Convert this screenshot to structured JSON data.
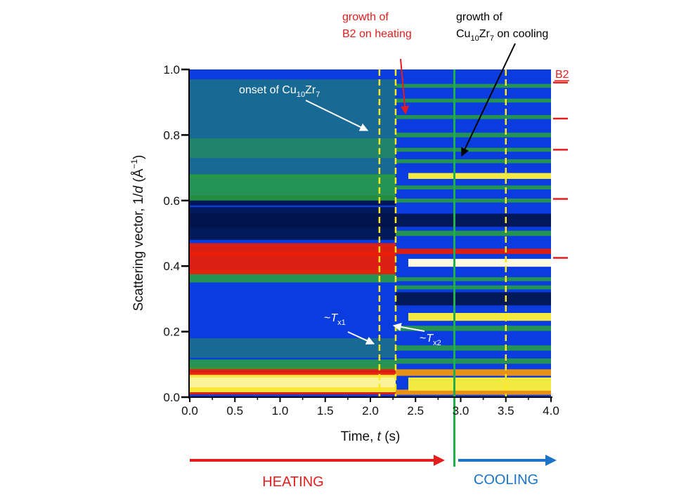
{
  "chart_data": {
    "type": "heatmap",
    "xlabel": {
      "main": "Time, ",
      "var": "t",
      "unit": " (s)"
    },
    "ylabel": {
      "main": "Scattering vector, 1/",
      "var": "d",
      "unit_open": " (Å",
      "exp": "−1",
      "unit_close": ")"
    },
    "xlim": [
      0.0,
      4.0
    ],
    "ylim": [
      0.0,
      1.0
    ],
    "xticks": [
      "0.0",
      "0.5",
      "1.0",
      "1.5",
      "2.0",
      "2.5",
      "3.0",
      "3.5",
      "4.0"
    ],
    "xtick_values": [
      0.0,
      0.5,
      1.0,
      1.5,
      2.0,
      2.5,
      3.0,
      3.5,
      4.0
    ],
    "yticks": [
      "0.0",
      "0.2",
      "0.4",
      "0.6",
      "0.8",
      "1.0"
    ],
    "ytick_values": [
      0.0,
      0.2,
      0.4,
      0.6,
      0.8,
      1.0
    ],
    "colors": {
      "background": "#0a3ce0",
      "dark": "#00144a",
      "green": "#2aa23a",
      "red": "#e81e0a",
      "orange": "#ff9a00",
      "yellow": "#fff23a",
      "white": "#fffbe0",
      "dashed_line": "#ffe81a",
      "cooling_line": "#1fb04a",
      "annotation_red": "#e41e1e",
      "cooling_blue": "#1a74c8"
    },
    "amorphous_bands": [
      {
        "y": 0.02,
        "w": 0.012,
        "kind": "red"
      },
      {
        "y": 0.045,
        "w": 0.03,
        "kind": "yellow"
      },
      {
        "y": 0.08,
        "w": 0.012,
        "kind": "red"
      },
      {
        "y": 0.1,
        "w": 0.015,
        "kind": "green"
      },
      {
        "y": 0.15,
        "w": 0.03,
        "kind": "greenfaint"
      },
      {
        "y": 0.37,
        "w": 0.02,
        "kind": "green"
      },
      {
        "y": 0.41,
        "w": 0.035,
        "kind": "red"
      },
      {
        "y": 0.45,
        "w": 0.02,
        "kind": "red"
      },
      {
        "y": 0.52,
        "w": 0.04,
        "kind": "dark"
      },
      {
        "y": 0.55,
        "w": 0.03,
        "kind": "dark"
      },
      {
        "y": 0.6,
        "w": 0.015,
        "kind": "dark"
      },
      {
        "y": 0.64,
        "w": 0.04,
        "kind": "green"
      },
      {
        "y": 0.73,
        "w": 0.06,
        "kind": "greenfaint"
      },
      {
        "y": 0.85,
        "w": 0.12,
        "kind": "greenfaint"
      }
    ],
    "crystal_bands": [
      {
        "y": 0.015,
        "w": 0.008,
        "kind": "orange"
      },
      {
        "y": 0.04,
        "w": 0.02,
        "kind": "yellow"
      },
      {
        "y": 0.075,
        "w": 0.01,
        "kind": "orange"
      },
      {
        "y": 0.11,
        "w": 0.008,
        "kind": "green"
      },
      {
        "y": 0.15,
        "w": 0.008,
        "kind": "green"
      },
      {
        "y": 0.21,
        "w": 0.008,
        "kind": "green"
      },
      {
        "y": 0.245,
        "w": 0.012,
        "kind": "yellow"
      },
      {
        "y": 0.3,
        "w": 0.02,
        "kind": "dark"
      },
      {
        "y": 0.335,
        "w": 0.006,
        "kind": "green"
      },
      {
        "y": 0.36,
        "w": 0.006,
        "kind": "green"
      },
      {
        "y": 0.41,
        "w": 0.012,
        "kind": "white"
      },
      {
        "y": 0.445,
        "w": 0.008,
        "kind": "red"
      },
      {
        "y": 0.5,
        "w": 0.008,
        "kind": "green"
      },
      {
        "y": 0.54,
        "w": 0.02,
        "kind": "dark"
      },
      {
        "y": 0.6,
        "w": 0.006,
        "kind": "green"
      },
      {
        "y": 0.64,
        "w": 0.006,
        "kind": "green"
      },
      {
        "y": 0.675,
        "w": 0.009,
        "kind": "yellow"
      },
      {
        "y": 0.72,
        "w": 0.006,
        "kind": "green"
      },
      {
        "y": 0.755,
        "w": 0.006,
        "kind": "green"
      },
      {
        "y": 0.8,
        "w": 0.007,
        "kind": "green"
      },
      {
        "y": 0.855,
        "w": 0.006,
        "kind": "green"
      },
      {
        "y": 0.905,
        "w": 0.006,
        "kind": "green"
      },
      {
        "y": 0.95,
        "w": 0.006,
        "kind": "green"
      }
    ],
    "vertical_lines": {
      "dashed_yellow": [
        2.1,
        2.28,
        3.5
      ],
      "cooling_start": 2.93
    },
    "b2_reference_marks": [
      0.96,
      0.85,
      0.755,
      0.605,
      0.425
    ],
    "annotations": {
      "onset": {
        "text": "onset of  Cu",
        "sub1": "10",
        "mid": "Zr",
        "sub2": "7"
      },
      "growth_b2": {
        "line1": "growth of",
        "line2": "B2 on heating"
      },
      "growth_cu": {
        "line1": "growth of",
        "line2a": "Cu",
        "sub1": "10",
        "line2b": "Zr",
        "sub2": "7",
        "line2c": " on cooling"
      },
      "b2_label": "B2",
      "tx1": {
        "prefix": "~",
        "var": "T",
        "sub": "x1"
      },
      "tx2": {
        "prefix": "~",
        "var": "T",
        "sub": "x2"
      }
    },
    "phases": {
      "heating": "HEATING",
      "cooling": "COOLING"
    }
  }
}
